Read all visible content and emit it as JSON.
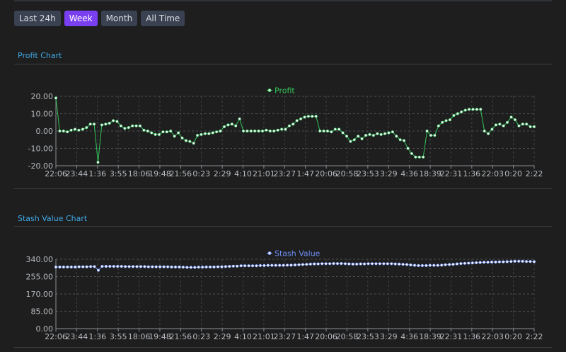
{
  "toolbar": {
    "buttons": [
      {
        "label": "Last 24h",
        "active": false
      },
      {
        "label": "Week",
        "active": true
      },
      {
        "label": "Month",
        "active": false
      },
      {
        "label": "All Time",
        "active": false
      }
    ]
  },
  "sections": {
    "profit_title": "Profit Chart",
    "stash_title": "Stash Value Chart"
  },
  "colors": {
    "accent": "#7b3ff2",
    "section_title": "#3fa9e6",
    "profit_series": "#34c55a",
    "stash_series": "#6f8ff7",
    "marker_fill": "#f2f4f8"
  },
  "chart_data": [
    {
      "type": "line",
      "title": "",
      "legend": "top-center",
      "grid": true,
      "ylim": [
        -20,
        20
      ],
      "yticks": [
        "20.00",
        "10.00",
        "0.00",
        "-10.00",
        "-20.00"
      ],
      "xticks": [
        "22:06",
        "23:44",
        "1:36",
        "3:55",
        "18:06",
        "19:48",
        "21:56",
        "0:23",
        "2:29",
        "4:10",
        "21:01",
        "23:27",
        "1:47",
        "20:06",
        "20:58",
        "23:53",
        "3:29",
        "4:36",
        "18:39",
        "22:31",
        "1:36",
        "22:03",
        "0:20",
        "2:22"
      ],
      "series": [
        {
          "name": "Profit",
          "values": [
            19,
            0,
            0,
            -0.5,
            0.5,
            1,
            0.5,
            1,
            2,
            4,
            4,
            -18,
            3.5,
            4,
            4.5,
            6,
            5.5,
            3,
            1.5,
            2,
            3,
            3,
            3,
            0.5,
            0,
            -1,
            -2,
            -2,
            -0.5,
            -0.5,
            0,
            -3,
            -1,
            -4,
            -5.5,
            -6,
            -7,
            -2.5,
            -2,
            -1.5,
            -1.5,
            -1,
            -0.5,
            0,
            2.5,
            3.5,
            4,
            3,
            7,
            0,
            0,
            0,
            0,
            0,
            0,
            0.5,
            0,
            0,
            0.5,
            1,
            1,
            3,
            4,
            6,
            7,
            8,
            8.5,
            8.5,
            8.5,
            0,
            0,
            0,
            -0.5,
            1,
            1,
            -1,
            -3,
            -6,
            -5,
            -3,
            -4.5,
            -2.5,
            -2,
            -2.5,
            -1.5,
            -2,
            -1.5,
            -1,
            -0.5,
            -3,
            -5,
            -5.5,
            -10,
            -13,
            -15,
            -15,
            -15,
            0,
            -2.5,
            -2.5,
            3,
            5,
            6,
            6.5,
            9,
            10,
            11,
            12,
            12.5,
            12.5,
            12.5,
            12.5,
            0,
            -1.5,
            1,
            3.5,
            4,
            3,
            5,
            8,
            6.5,
            3,
            4,
            4,
            2.5,
            2.5
          ]
        }
      ]
    },
    {
      "type": "line",
      "title": "",
      "legend": "top-center",
      "grid": true,
      "ylim": [
        0,
        340
      ],
      "yticks": [
        "340.00",
        "255.00",
        "170.00",
        "85.00",
        "0.00"
      ],
      "xticks": [
        "22:06",
        "23:44",
        "1:36",
        "3:55",
        "18:06",
        "19:48",
        "21:56",
        "0:23",
        "2:29",
        "4:10",
        "21:01",
        "23:27",
        "1:47",
        "20:06",
        "20:58",
        "23:53",
        "3:29",
        "4:36",
        "18:39",
        "22:31",
        "1:36",
        "22:03",
        "0:20",
        "2:22"
      ],
      "series": [
        {
          "name": "Stash Value",
          "values": [
            302,
            302,
            302,
            302,
            302,
            302,
            303,
            303,
            303,
            304,
            304,
            286,
            305,
            305,
            305,
            305,
            305,
            305,
            304,
            304,
            304,
            304,
            304,
            304,
            303,
            303,
            303,
            303,
            303,
            303,
            302,
            302,
            302,
            301,
            300,
            300,
            300,
            301,
            301,
            302,
            302,
            302,
            303,
            303,
            304,
            305,
            306,
            306,
            308,
            308,
            308,
            308,
            308,
            309,
            309,
            310,
            310,
            310,
            310,
            310,
            311,
            311,
            312,
            313,
            314,
            315,
            316,
            317,
            317,
            318,
            318,
            318,
            319,
            319,
            319,
            318,
            317,
            316,
            316,
            317,
            317,
            318,
            318,
            318,
            318,
            318,
            318,
            318,
            317,
            316,
            315,
            314,
            312,
            310,
            309,
            309,
            309,
            310,
            310,
            310,
            311,
            313,
            314,
            315,
            317,
            319,
            320,
            321,
            322,
            323,
            324,
            325,
            325,
            326,
            326,
            327,
            327,
            328,
            329,
            330,
            330,
            330,
            329,
            329,
            328
          ]
        }
      ]
    }
  ]
}
